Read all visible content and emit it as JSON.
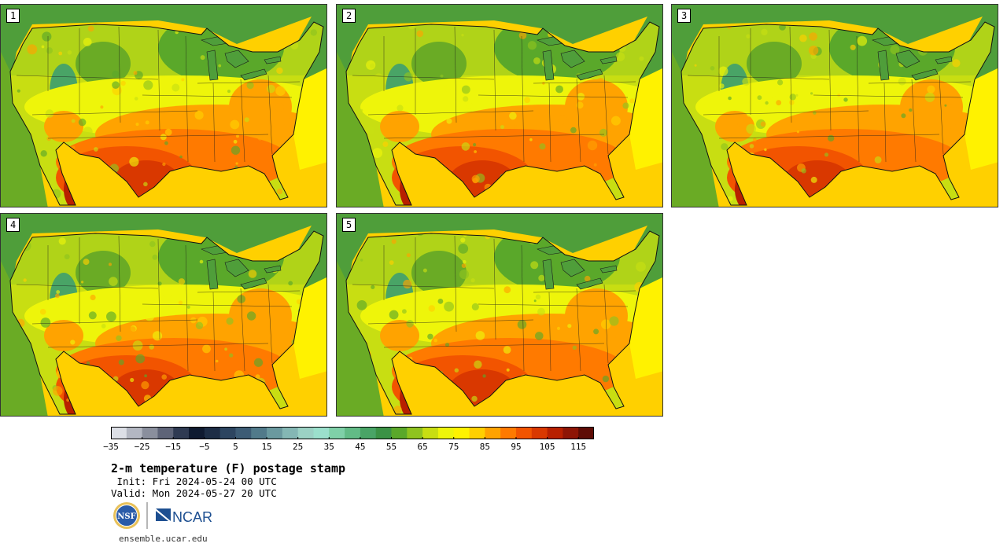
{
  "stamps": [
    {
      "label": "1"
    },
    {
      "label": "2"
    },
    {
      "label": "3"
    },
    {
      "label": "4"
    },
    {
      "label": "5"
    }
  ],
  "colorbar": {
    "ticks": [
      "−35",
      "−25",
      "−15",
      "−5",
      "5",
      "15",
      "25",
      "35",
      "45",
      "55",
      "65",
      "75",
      "85",
      "95",
      "105",
      "115"
    ],
    "range_min": -35,
    "range_max": 120,
    "step": 5,
    "colors": [
      "#dcdfe6",
      "#b3b7c2",
      "#8a8f9d",
      "#5e6478",
      "#2f3a52",
      "#0f1a30",
      "#1d2d45",
      "#2d4560",
      "#3d5c75",
      "#517a8a",
      "#6a999f",
      "#84b7b4",
      "#9bd1c4",
      "#9be0cc",
      "#7fd0a8",
      "#62bb86",
      "#49a466",
      "#3b9245",
      "#5aa82a",
      "#8fc31f",
      "#c8de12",
      "#eef50a",
      "#fff200",
      "#ffd000",
      "#ffa300",
      "#ff7a00",
      "#f25400",
      "#d93800",
      "#b82000",
      "#8e1505",
      "#5e0c05"
    ]
  },
  "title": "2-m temperature (F) postage stamp",
  "init": " Init: Fri 2024-05-24 00 UTC",
  "valid": "Valid: Mon 2024-05-27 20 UTC",
  "logos": {
    "nsf": "NSF",
    "ncar": "NCAR"
  },
  "footer_url": "ensemble.ucar.edu"
}
